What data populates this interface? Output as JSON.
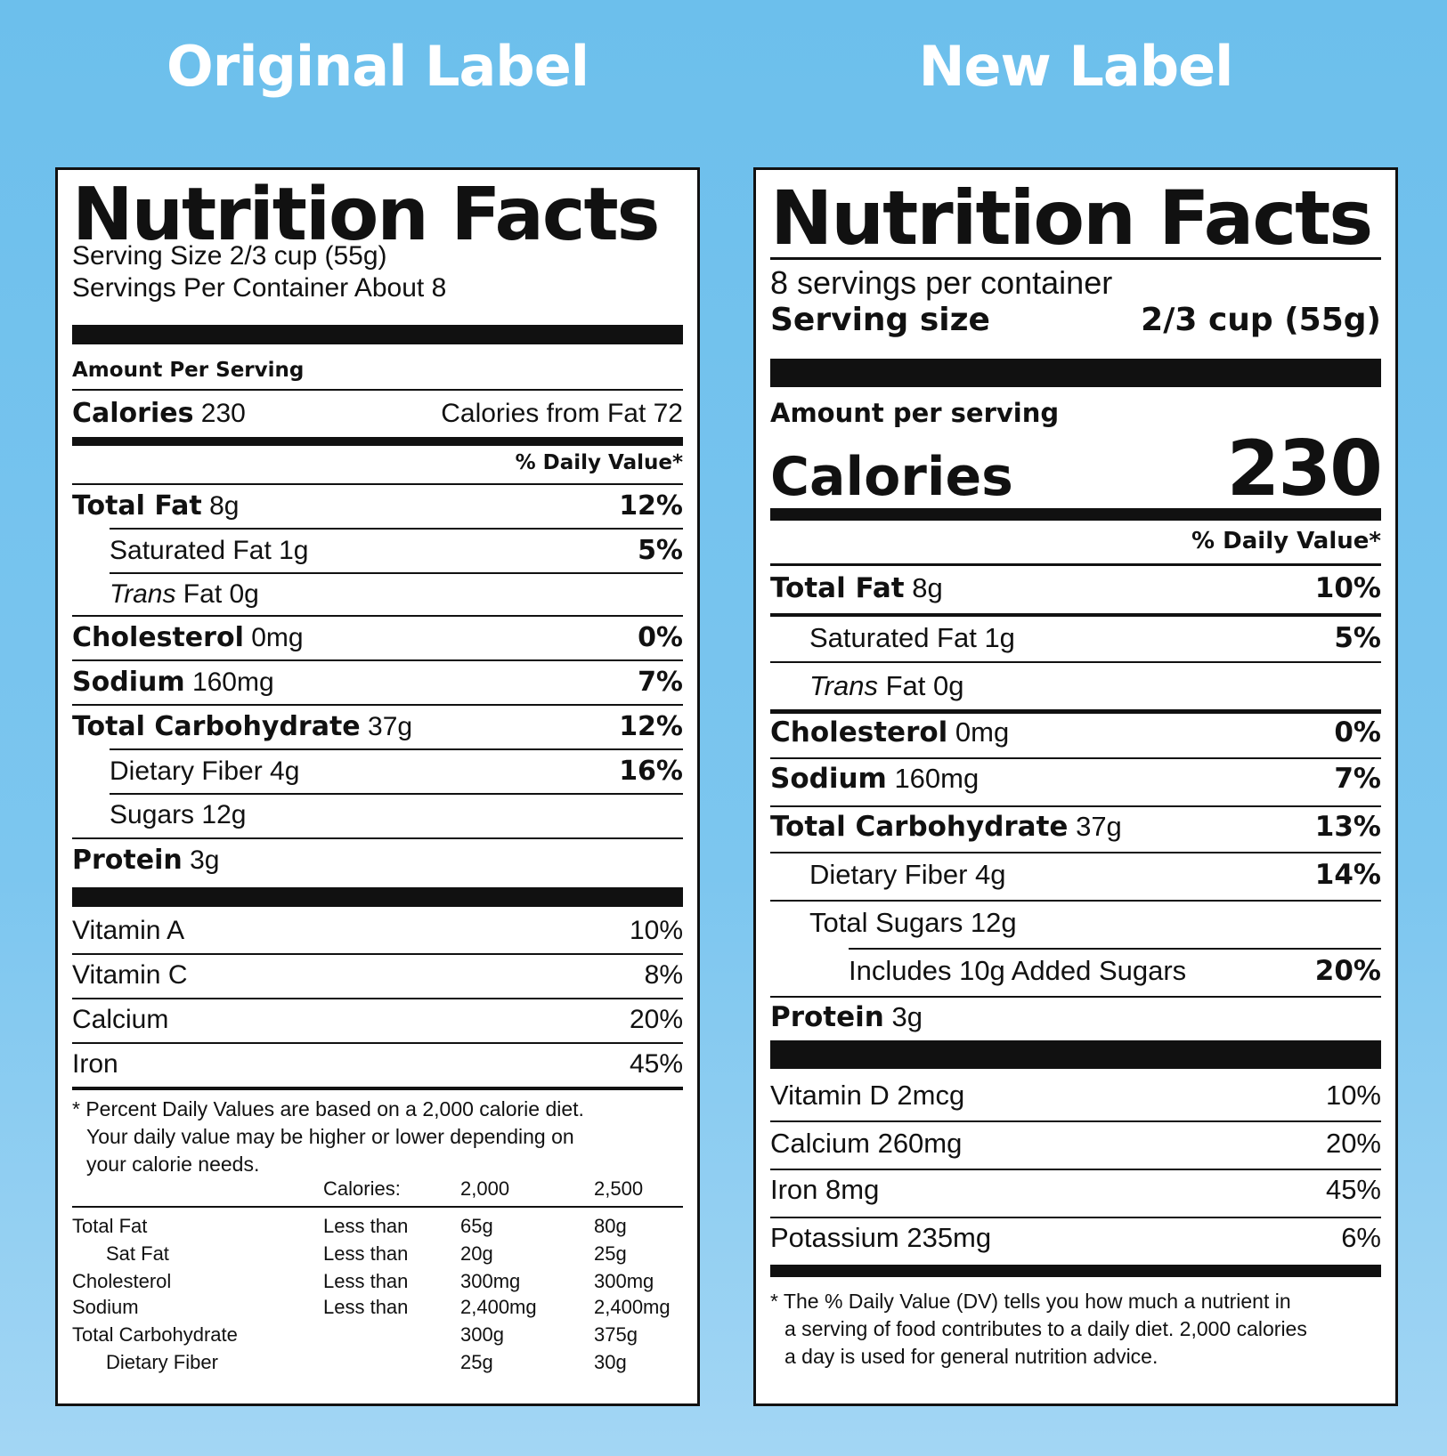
{
  "headings": {
    "original": "Original Label",
    "new": "New Label"
  },
  "original": {
    "title": "Nutrition Facts",
    "serving_size": "Serving Size 2/3 cup (55g)",
    "servings_per_container": "Servings Per Container About 8",
    "amount_per_serving": "Amount Per Serving",
    "calories_label": "Calories",
    "calories_value": "230",
    "calories_from_fat": "Calories from Fat 72",
    "dv_header": "% Daily Value*",
    "nutrients": [
      {
        "name": "Total Fat",
        "amount": "8g",
        "dv": "12%"
      },
      {
        "name": "Saturated Fat 1g",
        "dv": "5%"
      },
      {
        "name_italic": "Trans",
        "name_rest": " Fat 0g"
      },
      {
        "name": "Cholesterol",
        "amount": "0mg",
        "dv": "0%"
      },
      {
        "name": "Sodium",
        "amount": "160mg",
        "dv": "7%"
      },
      {
        "name": "Total Carbohydrate",
        "amount": "37g",
        "dv": "12%"
      },
      {
        "name": "Dietary Fiber 4g",
        "dv": "16%"
      },
      {
        "name": "Sugars 12g"
      },
      {
        "name": "Protein",
        "amount": "3g"
      }
    ],
    "vitamins": [
      {
        "name": "Vitamin A",
        "dv": "10%"
      },
      {
        "name": "Vitamin C",
        "dv": "8%"
      },
      {
        "name": "Calcium",
        "dv": "20%"
      },
      {
        "name": "Iron",
        "dv": "45%"
      }
    ],
    "footnote_lines": [
      "* Percent Daily Values are based on a 2,000 calorie diet.",
      "Your daily value may be higher or lower depending on",
      "your calorie needs."
    ],
    "dv_table": {
      "header": [
        "Calories:",
        "2,000",
        "2,500"
      ],
      "rows": [
        [
          "Total Fat",
          "Less than",
          "65g",
          "80g"
        ],
        [
          "Sat Fat",
          "Less than",
          "20g",
          "25g"
        ],
        [
          "Cholesterol",
          "Less than",
          "300mg",
          "300mg"
        ],
        [
          "Sodium",
          "Less than",
          "2,400mg",
          "2,400mg"
        ],
        [
          "Total Carbohydrate",
          "",
          "300g",
          "375g"
        ],
        [
          "Dietary Fiber",
          "",
          "25g",
          "30g"
        ]
      ]
    }
  },
  "new": {
    "title": "Nutrition Facts",
    "servings_per_container": "8 servings per container",
    "serving_size_label": "Serving size",
    "serving_size_value": "2/3 cup (55g)",
    "amount_per_serving": "Amount per serving",
    "calories_label": "Calories",
    "calories_value": "230",
    "dv_header": "% Daily Value*",
    "nutrients": [
      {
        "name": "Total Fat",
        "amount": "8g",
        "dv": "10%"
      },
      {
        "name": "Saturated Fat 1g",
        "dv": "5%"
      },
      {
        "name_italic": "Trans",
        "name_rest": " Fat 0g"
      },
      {
        "name": "Cholesterol",
        "amount": "0mg",
        "dv": "0%"
      },
      {
        "name": "Sodium",
        "amount": "160mg",
        "dv": "7%"
      },
      {
        "name": "Total Carbohydrate",
        "amount": "37g",
        "dv": "13%"
      },
      {
        "name": "Dietary Fiber 4g",
        "dv": "14%"
      },
      {
        "name": "Total Sugars 12g"
      },
      {
        "name": "Includes 10g Added Sugars",
        "dv": "20%"
      },
      {
        "name": "Protein",
        "amount": "3g"
      }
    ],
    "vitamins": [
      {
        "name": "Vitamin D 2mcg",
        "dv": "10%"
      },
      {
        "name": "Calcium 260mg",
        "dv": "20%"
      },
      {
        "name": "Iron 8mg",
        "dv": "45%"
      },
      {
        "name": "Potassium 235mg",
        "dv": "6%"
      }
    ],
    "footnote_lines": [
      "* The % Daily Value (DV) tells you how much a nutrient in",
      "a serving of food contributes to a daily diet. 2,000 calories",
      "a day is used for general nutrition advice."
    ]
  }
}
